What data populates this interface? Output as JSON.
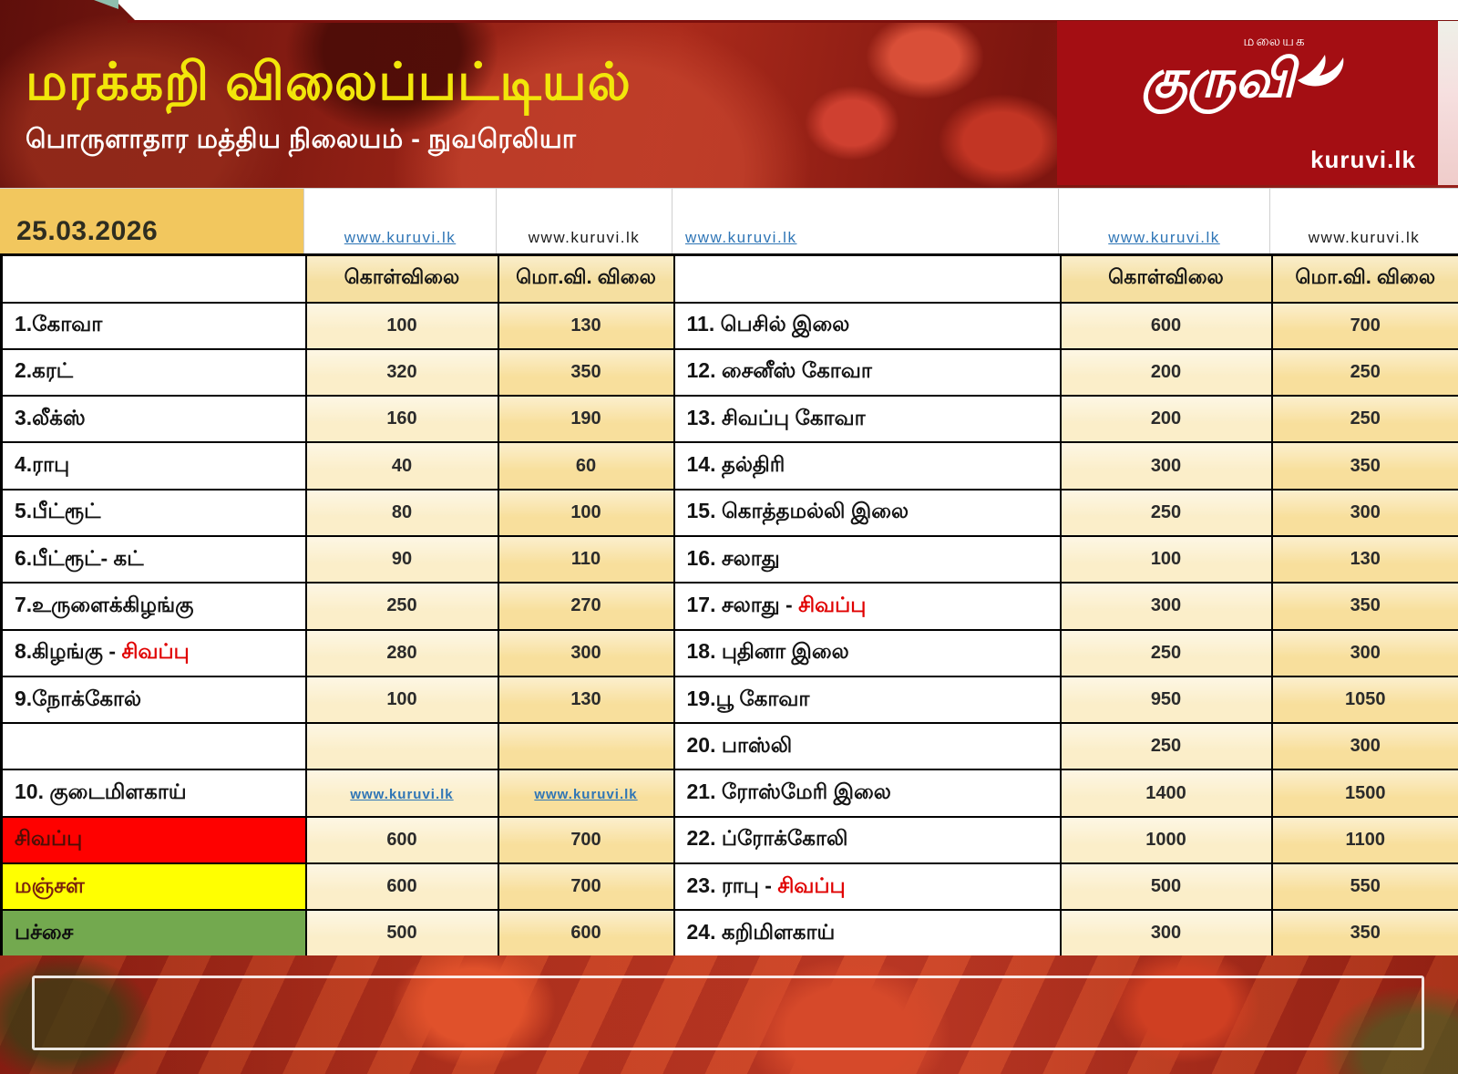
{
  "banner": {
    "title": "மரக்கறி விலைப்பட்டியல்",
    "subtitle": "பொருளாதார மத்திய நிலையம் - நுவரெலியா",
    "logo": {
      "tagline": "மலையக",
      "wordmark": "குருவி",
      "site": "kuruvi.lk"
    }
  },
  "date_row": {
    "date": "25.03.2026",
    "cells": [
      {
        "text": "www.kuruvi.lk",
        "link": true
      },
      {
        "text": "www.kuruvi.lk",
        "link": false
      },
      {
        "text": "www.kuruvi.lk",
        "link": true
      },
      {
        "text": "www.kuruvi.lk",
        "link": true
      },
      {
        "text": "www.kuruvi.lk",
        "link": false
      }
    ]
  },
  "table": {
    "buy_header": "கொள்விலை",
    "wholesale_header": "மொ.வி. விலை",
    "left_rows": [
      {
        "name": "1.கோவா",
        "buy": "100",
        "sell": "130"
      },
      {
        "name": "2.கரட்",
        "buy": "320",
        "sell": "350"
      },
      {
        "name": "3.லீக்ஸ்",
        "buy": "160",
        "sell": "190"
      },
      {
        "name": "4.ராபு",
        "buy": "40",
        "sell": "60"
      },
      {
        "name": "5.பீட்ரூட்",
        "buy": "80",
        "sell": "100"
      },
      {
        "name": "6.பீட்ரூட்- கட்",
        "buy": "90",
        "sell": "110"
      },
      {
        "name": "7.உருளைக்கிழங்கு",
        "buy": "250",
        "sell": "270"
      },
      {
        "name": "8.கிழங்கு - ",
        "name_red": "சிவப்பு",
        "buy": "280",
        "sell": "300"
      },
      {
        "name": "9.நோக்கோல்",
        "buy": "100",
        "sell": "130"
      },
      {
        "name": "",
        "buy": "",
        "sell": ""
      },
      {
        "name": "10. குடைமிளகாய்",
        "buy": "www.kuruvi.lk",
        "sell": "www.kuruvi.lk",
        "buy_link": true,
        "sell_link": true
      },
      {
        "name": "சிவப்பு",
        "bg": "#FE0100",
        "name_color": "#4D0F06",
        "buy": "600",
        "sell": "700"
      },
      {
        "name": "மஞ்சள்",
        "bg": "#FFFF01",
        "name_color": "#7A200E",
        "buy": "600",
        "sell": "700"
      },
      {
        "name": "பச்சை",
        "bg": "#73A94F",
        "name_color": "#101010",
        "buy": "500",
        "sell": "600"
      }
    ],
    "right_rows": [
      {
        "name": "11. பெசில் இலை",
        "buy": "600",
        "sell": "700"
      },
      {
        "name": "12. சைனீஸ் கோவா",
        "buy": "200",
        "sell": "250"
      },
      {
        "name": "13. சிவப்பு கோவா",
        "buy": "200",
        "sell": "250"
      },
      {
        "name": "14. தல்திரி",
        "buy": "300",
        "sell": "350"
      },
      {
        "name": "15. கொத்தமல்லி இலை",
        "buy": "250",
        "sell": "300"
      },
      {
        "name": "16. சலாது",
        "buy": "100",
        "sell": "130"
      },
      {
        "name": "17. சலாது - ",
        "name_red": "சிவப்பு",
        "buy": "300",
        "sell": "350"
      },
      {
        "name": "18. புதினா இலை",
        "buy": "250",
        "sell": "300"
      },
      {
        "name": "19.பூ கோவா",
        "buy": "950",
        "sell": "1050"
      },
      {
        "name": "20. பாஸ்லி",
        "buy": "250",
        "sell": "300"
      },
      {
        "name": "21. ரோஸ்மேரி இலை",
        "buy": "1400",
        "sell": "1500"
      },
      {
        "name": "22. ப்ரோக்கோலி",
        "buy": "1000",
        "sell": "1100"
      },
      {
        "name": "23. ராபு - ",
        "name_red": "சிவப்பு",
        "buy": "500",
        "sell": "550"
      },
      {
        "name": "24. கறிமிளகாய்",
        "buy": "300",
        "sell": "350"
      }
    ]
  },
  "colors": {
    "title_yellow": "#F2E60A",
    "logo_red": "#A40E13",
    "link_blue": "#2E75B6",
    "date_cell_gold": "#F2C75E",
    "header_gold": "#F5DFA0",
    "buy_col_cream": "#FBEEC9",
    "wholesale_col_gold": "#F8DF9C",
    "red_row": "#FE0100",
    "yellow_row": "#FFFF01",
    "green_row": "#73A94F",
    "highlight_red_text": "#E00000"
  }
}
